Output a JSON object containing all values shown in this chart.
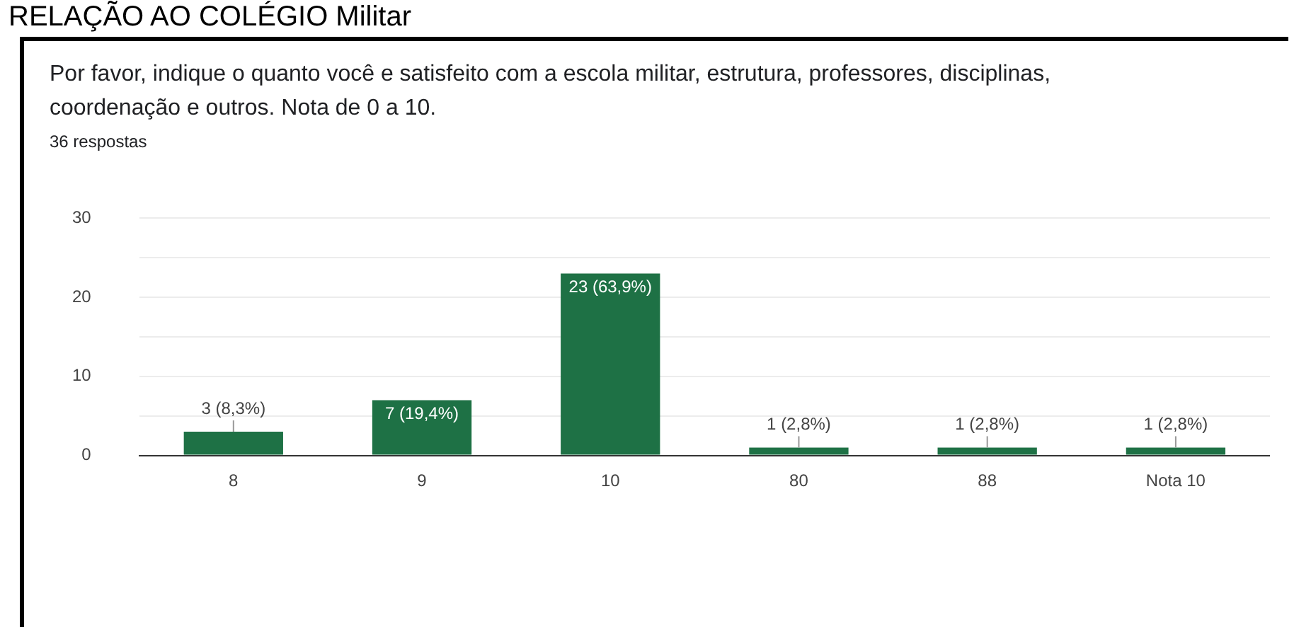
{
  "chart_data": {
    "type": "bar",
    "title": "Por favor, indique o quanto você e satisfeito com a escola militar, estrutura, professores, disciplinas, coordenação e outros. Nota de 0 a 10.",
    "subtitle": "36 respostas",
    "annotations": [
      "RELAÇÃO AO COLÉGIO Militar"
    ],
    "categories": [
      "8",
      "9",
      "10",
      "80",
      "88",
      "Nota 10"
    ],
    "values": [
      3,
      7,
      23,
      1,
      1,
      1
    ],
    "value_labels": [
      "3 (8,3%)",
      "7 (19,4%)",
      "23 (63,9%)",
      "1 (2,8%)",
      "1 (2,8%)",
      "1 (2,8%)"
    ],
    "color": "#1e7145",
    "ylim": [
      0,
      30
    ],
    "yticks": [
      0,
      {
        "value": 5,
        "label": null
      },
      10,
      {
        "value": 15,
        "label": null
      },
      20,
      {
        "value": 25,
        "label": null
      },
      30
    ],
    "grid": "y",
    "legend": false
  }
}
